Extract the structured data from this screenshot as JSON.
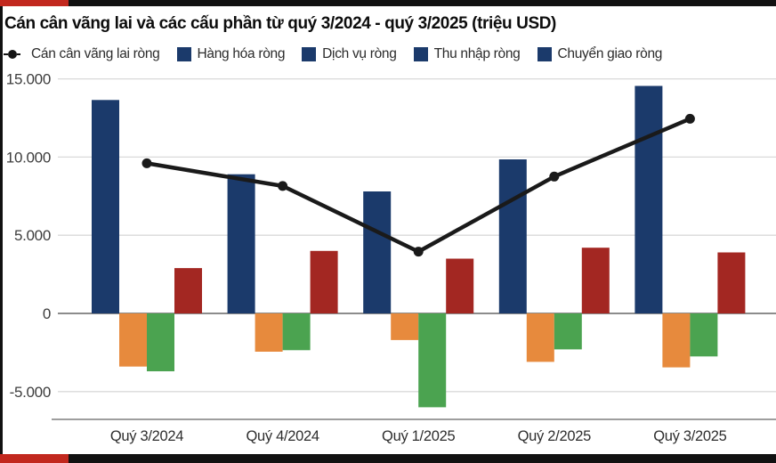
{
  "page": {
    "title": "Cán cân vãng lai và các cấu phần từ quý 3/2024 - quý 3/2025 (triệu USD)"
  },
  "colors": {
    "frame_black": "#111111",
    "accent_red": "#c2281e",
    "goods_navy": "#1b3a6b",
    "services_orange": "#e78a3d",
    "income_green": "#4ba350",
    "transfers_red": "#a32722",
    "line_black": "#1a1a1a",
    "grid_light": "#d9d9d9",
    "grid_zero": "#8c8c8c",
    "axis_bottom": "#9e9e9e",
    "axis_text": "#3d3d3d",
    "tick_text": "#2e2e2e"
  },
  "legend": {
    "items": [
      {
        "label": "Cán cân vãng lai ròng",
        "marker": "line-dot",
        "swatch": "#141414"
      },
      {
        "label": "Hàng hóa ròng",
        "marker": "square",
        "swatch": "#1b3a6b"
      },
      {
        "label": "Dịch vụ ròng",
        "marker": "square",
        "swatch": "#1b3a6b"
      },
      {
        "label": "Thu nhập ròng",
        "marker": "square",
        "swatch": "#1b3a6b"
      },
      {
        "label": "Chuyển giao ròng",
        "marker": "square",
        "swatch": "#1b3a6b"
      }
    ]
  },
  "chart_data": {
    "type": "bar",
    "title": "Cán cân vãng lai và các cấu phần từ quý 3/2024 - quý 3/2025 (triệu USD)",
    "xlabel": "",
    "ylabel": "triệu USD",
    "categories": [
      "Quý 3/2024",
      "Quý 4/2024",
      "Quý 1/2025",
      "Quý 2/2025",
      "Quý 3/2025"
    ],
    "series": [
      {
        "name": "Cán cân vãng lai ròng",
        "type": "line",
        "color": "#1a1a1a",
        "values": [
          9600,
          8150,
          3950,
          8750,
          12450
        ]
      },
      {
        "name": "Hàng hóa ròng",
        "type": "bar",
        "color": "#1b3a6b",
        "values": [
          13650,
          8900,
          7800,
          9850,
          14550
        ]
      },
      {
        "name": "Dịch vụ ròng",
        "type": "bar",
        "color": "#e78a3d",
        "values": [
          -3400,
          -2450,
          -1700,
          -3100,
          -3450
        ]
      },
      {
        "name": "Thu nhập ròng",
        "type": "bar",
        "color": "#4ba350",
        "values": [
          -3700,
          -2350,
          -6000,
          -2300,
          -2750
        ]
      },
      {
        "name": "Chuyển giao ròng",
        "type": "bar",
        "color": "#a32722",
        "values": [
          2900,
          4000,
          3500,
          4200,
          3900
        ]
      }
    ],
    "yticks": [
      {
        "value": 15000,
        "label": "15.000"
      },
      {
        "value": 10000,
        "label": "10.000"
      },
      {
        "value": 5000,
        "label": "5.000"
      },
      {
        "value": 0,
        "label": "0"
      },
      {
        "value": -5000,
        "label": "-5.000"
      }
    ],
    "ylim": [
      -6800,
      15400
    ],
    "grid": true,
    "legend_position": "top"
  }
}
